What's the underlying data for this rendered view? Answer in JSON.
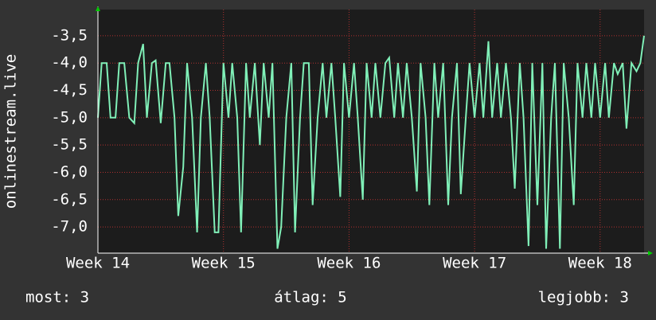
{
  "chart_data": {
    "type": "line",
    "y_label": "onlinestream.live",
    "x": [
      14.0,
      14.03,
      14.07,
      14.1,
      14.14,
      14.17,
      14.21,
      14.25,
      14.29,
      14.32,
      14.36,
      14.39,
      14.43,
      14.46,
      14.5,
      14.54,
      14.57,
      14.61,
      14.64,
      14.68,
      14.71,
      14.75,
      14.79,
      14.82,
      14.86,
      14.89,
      14.93,
      14.96,
      15.0,
      15.04,
      15.07,
      15.11,
      15.14,
      15.18,
      15.21,
      15.25,
      15.29,
      15.32,
      15.36,
      15.39,
      15.43,
      15.46,
      15.5,
      15.54,
      15.57,
      15.61,
      15.64,
      15.68,
      15.71,
      15.75,
      15.79,
      15.82,
      15.86,
      15.89,
      15.93,
      15.96,
      16.0,
      16.04,
      16.07,
      16.11,
      16.14,
      16.18,
      16.21,
      16.25,
      16.29,
      16.32,
      16.36,
      16.39,
      16.43,
      16.46,
      16.5,
      16.54,
      16.57,
      16.61,
      16.64,
      16.68,
      16.71,
      16.75,
      16.79,
      16.82,
      16.86,
      16.89,
      16.93,
      16.96,
      17.0,
      17.04,
      17.07,
      17.11,
      17.14,
      17.18,
      17.21,
      17.25,
      17.29,
      17.32,
      17.36,
      17.39,
      17.43,
      17.46,
      17.5,
      17.54,
      17.57,
      17.61,
      17.64,
      17.68,
      17.71,
      17.75,
      17.79,
      17.82,
      17.86,
      17.89,
      17.93,
      17.96,
      18.0,
      18.04,
      18.07,
      18.11,
      18.14,
      18.18,
      18.21,
      18.25,
      18.29,
      18.32,
      18.35
    ],
    "series": [
      {
        "color": "#80f0b8",
        "values": [
          -5.0,
          -4.0,
          -4.0,
          -5.0,
          -5.0,
          -4.0,
          -4.0,
          -5.0,
          -5.1,
          -4.0,
          -3.65,
          -5.0,
          -4.0,
          -3.95,
          -5.1,
          -4.0,
          -4.0,
          -5.0,
          -6.8,
          -5.9,
          -4.0,
          -5.0,
          -7.1,
          -5.0,
          -4.0,
          -5.0,
          -7.1,
          -7.1,
          -4.0,
          -5.0,
          -4.0,
          -5.0,
          -7.1,
          -4.0,
          -5.0,
          -4.0,
          -5.5,
          -4.0,
          -5.0,
          -4.0,
          -7.4,
          -7.0,
          -5.0,
          -4.0,
          -7.1,
          -5.0,
          -4.0,
          -4.0,
          -6.6,
          -5.0,
          -4.0,
          -5.0,
          -4.0,
          -5.0,
          -6.45,
          -4.0,
          -5.0,
          -4.0,
          -5.0,
          -6.5,
          -4.0,
          -5.0,
          -4.0,
          -5.0,
          -4.0,
          -3.9,
          -5.0,
          -4.0,
          -5.0,
          -4.0,
          -5.0,
          -6.35,
          -4.0,
          -5.0,
          -6.6,
          -4.0,
          -5.0,
          -4.0,
          -6.6,
          -5.0,
          -4.0,
          -6.4,
          -5.0,
          -4.0,
          -5.0,
          -4.0,
          -5.0,
          -3.6,
          -5.0,
          -4.0,
          -5.0,
          -4.0,
          -5.0,
          -6.3,
          -4.0,
          -5.0,
          -7.35,
          -4.0,
          -6.6,
          -4.0,
          -7.4,
          -5.0,
          -4.0,
          -7.4,
          -4.0,
          -5.0,
          -6.6,
          -4.0,
          -5.0,
          -4.0,
          -5.0,
          -4.0,
          -5.0,
          -4.0,
          -5.0,
          -4.0,
          -4.2,
          -4.0,
          -5.2,
          -4.0,
          -4.15,
          -4.0,
          -3.5
        ]
      }
    ],
    "xlim": [
      14.0,
      18.35
    ],
    "xticks": [
      {
        "value": 14,
        "label": "Week 14"
      },
      {
        "value": 15,
        "label": "Week 15"
      },
      {
        "value": 16,
        "label": "Week 16"
      },
      {
        "value": 17,
        "label": "Week 17"
      },
      {
        "value": 18,
        "label": "Week 18"
      }
    ],
    "ylim": [
      -7.48,
      -3.02
    ],
    "yticks": [
      {
        "value": -3.5,
        "label": "-3,5"
      },
      {
        "value": -4.0,
        "label": "-4,0"
      },
      {
        "value": -4.5,
        "label": "-4,5"
      },
      {
        "value": -5.0,
        "label": "-5,0"
      },
      {
        "value": -5.5,
        "label": "-5,5"
      },
      {
        "value": -6.0,
        "label": "-6,0"
      },
      {
        "value": -6.5,
        "label": "-6,5"
      },
      {
        "value": -7.0,
        "label": "-7,0"
      }
    ],
    "grid": true,
    "footer": [
      "most: 3",
      "átlag: 5",
      "legjobb: 3"
    ]
  }
}
